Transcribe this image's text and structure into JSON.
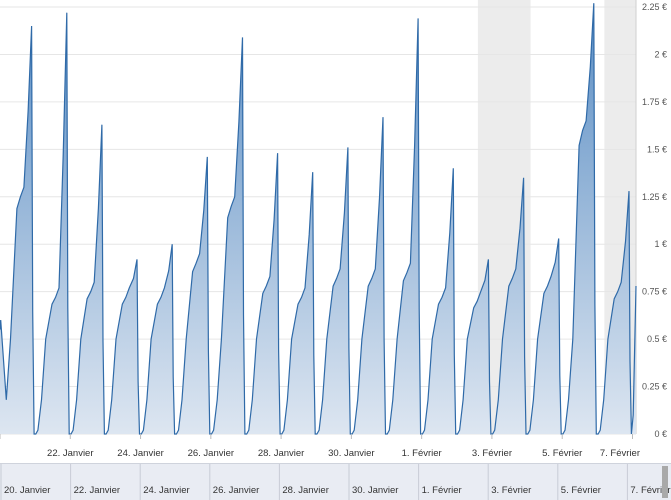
{
  "chart_data": {
    "type": "area",
    "currency": "€",
    "y_ticks": [
      "0 €",
      "0.25 €",
      "0.5 €",
      "0.75 €",
      "1 €",
      "1.25 €",
      "1.5 €",
      "1.75 €",
      "2 €",
      "2.25 €"
    ],
    "ylim": [
      0,
      2.25
    ],
    "x_ticks": [
      "22. Janvier",
      "24. Janvier",
      "26. Janvier",
      "28. Janvier",
      "30. Janvier",
      "1. Février",
      "3. Février",
      "5. Février",
      "7. Février"
    ],
    "navigator_ticks": [
      "20. Janvier",
      "22. Janvier",
      "24. Janvier",
      "26. Janvier",
      "28. Janvier",
      "30. Janvier",
      "1. Février",
      "3. Février",
      "5. Février",
      "7. Février"
    ],
    "x_start_day": 20.0,
    "x_end_day": 38.1,
    "grid": true,
    "daily_peaks": [
      {
        "day": 20,
        "peak": 2.15,
        "mid": 1.25
      },
      {
        "day": 21,
        "peak": 2.22,
        "mid": 0.72
      },
      {
        "day": 22,
        "peak": 1.63,
        "mid": 0.75
      },
      {
        "day": 23,
        "peak": 0.92,
        "mid": 0.72
      },
      {
        "day": 24,
        "peak": 1.0,
        "mid": 0.72
      },
      {
        "day": 25,
        "peak": 1.46,
        "mid": 0.9
      },
      {
        "day": 26,
        "peak": 2.09,
        "mid": 1.2
      },
      {
        "day": 27,
        "peak": 1.48,
        "mid": 0.78
      },
      {
        "day": 28,
        "peak": 1.38,
        "mid": 0.72
      },
      {
        "day": 29,
        "peak": 1.51,
        "mid": 0.82
      },
      {
        "day": 30,
        "peak": 1.67,
        "mid": 0.82
      },
      {
        "day": 31,
        "peak": 2.19,
        "mid": 0.85
      },
      {
        "day": 32,
        "peak": 1.4,
        "mid": 0.72
      },
      {
        "day": 33,
        "peak": 0.92,
        "mid": 0.7
      },
      {
        "day": 34,
        "peak": 1.35,
        "mid": 0.82
      },
      {
        "day": 35,
        "peak": 1.03,
        "mid": 0.78
      },
      {
        "day": 36,
        "peak": 2.27,
        "mid": 1.6
      },
      {
        "day": 37,
        "peak": 1.28,
        "mid": 0.75
      }
    ],
    "last_value": 0.78,
    "line_color": "#2f6aa8",
    "fill_top_color": "#5b8ec4",
    "fill_bottom_color": "#dde6f1",
    "weekend_band_color": "#ececec"
  }
}
